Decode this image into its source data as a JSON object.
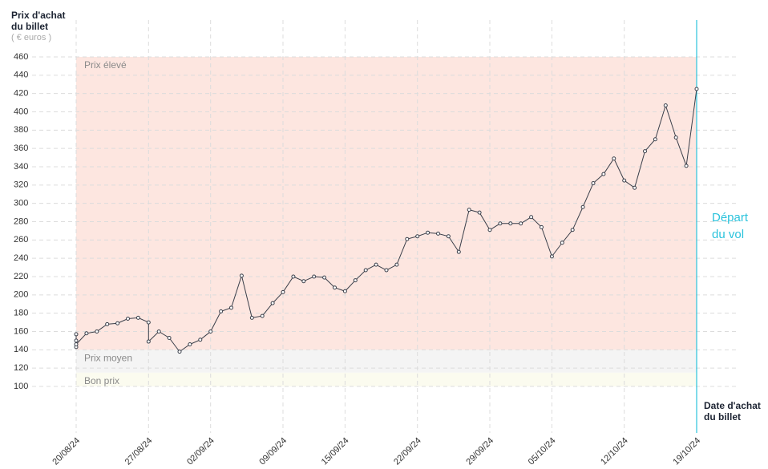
{
  "chart_data": {
    "type": "line",
    "y_title": "Prix d'achat du billet",
    "y_unit": "( € euros )",
    "x_title": "Date d'achat du billet",
    "x": [
      "2024-08-20",
      "2024-08-20",
      "2024-08-20",
      "2024-08-20",
      "2024-08-21",
      "2024-08-22",
      "2024-08-23",
      "2024-08-24",
      "2024-08-25",
      "2024-08-26",
      "2024-08-27",
      "2024-08-27",
      "2024-08-28",
      "2024-08-29",
      "2024-08-30",
      "2024-08-31",
      "2024-09-01",
      "2024-09-02",
      "2024-09-03",
      "2024-09-04",
      "2024-09-05",
      "2024-09-06",
      "2024-09-07",
      "2024-09-08",
      "2024-09-09",
      "2024-09-10",
      "2024-09-11",
      "2024-09-12",
      "2024-09-13",
      "2024-09-14",
      "2024-09-15",
      "2024-09-16",
      "2024-09-17",
      "2024-09-18",
      "2024-09-19",
      "2024-09-20",
      "2024-09-21",
      "2024-09-22",
      "2024-09-23",
      "2024-09-24",
      "2024-09-25",
      "2024-09-26",
      "2024-09-27",
      "2024-09-28",
      "2024-09-29",
      "2024-09-30",
      "2024-10-01",
      "2024-10-02",
      "2024-10-03",
      "2024-10-04",
      "2024-10-05",
      "2024-10-06",
      "2024-10-07",
      "2024-10-08",
      "2024-10-09",
      "2024-10-10",
      "2024-10-11",
      "2024-10-12",
      "2024-10-13",
      "2024-10-14",
      "2024-10-15",
      "2024-10-16",
      "2024-10-17",
      "2024-10-18",
      "2024-10-19"
    ],
    "series": [
      {
        "name": "Prix",
        "color": "#3a3f4a",
        "values": [
          157,
          150,
          143,
          146,
          158,
          160,
          168,
          169,
          174,
          175,
          170,
          149,
          160,
          153,
          138,
          146,
          151,
          160,
          182,
          186,
          221,
          175,
          177,
          191,
          203,
          220,
          215,
          220,
          219,
          208,
          204,
          216,
          227,
          233,
          227,
          233,
          261,
          264,
          268,
          267,
          264,
          247,
          293,
          290,
          271,
          278,
          278,
          278,
          285,
          274,
          242,
          257,
          271,
          296,
          322,
          332,
          349,
          325,
          317,
          357,
          370,
          407,
          372,
          341,
          425
        ]
      }
    ],
    "xlim": [
      "2024-08-20",
      "2024-10-19"
    ],
    "xticks": [
      {
        "value": "2024-08-20",
        "label": "20/08/24"
      },
      {
        "value": "2024-08-27",
        "label": "27/08/24"
      },
      {
        "value": "2024-09-02",
        "label": "02/09/24"
      },
      {
        "value": "2024-09-09",
        "label": "09/09/24"
      },
      {
        "value": "2024-09-15",
        "label": "15/09/24"
      },
      {
        "value": "2024-09-22",
        "label": "22/09/24"
      },
      {
        "value": "2024-09-29",
        "label": "29/09/24"
      },
      {
        "value": "2024-10-05",
        "label": "05/10/24"
      },
      {
        "value": "2024-10-12",
        "label": "12/10/24"
      },
      {
        "value": "2024-10-19",
        "label": "19/10/24"
      }
    ],
    "ylim": [
      100,
      460
    ],
    "yticks": [
      100,
      120,
      140,
      160,
      180,
      200,
      220,
      240,
      260,
      280,
      300,
      320,
      340,
      360,
      380,
      400,
      420,
      440,
      460
    ],
    "grid": true,
    "bands": [
      {
        "label": "Prix élevé",
        "from": 140,
        "to": 460,
        "color": "#fde6e0"
      },
      {
        "label": "Prix moyen",
        "from": 115,
        "to": 140,
        "color": "#f4f4f4"
      },
      {
        "label": "Bon prix",
        "from": 100,
        "to": 115,
        "color": "#fbfbef"
      }
    ],
    "marker": {
      "x": "2024-10-19",
      "label": "Départ du vol",
      "color": "#2bc3dc"
    }
  }
}
